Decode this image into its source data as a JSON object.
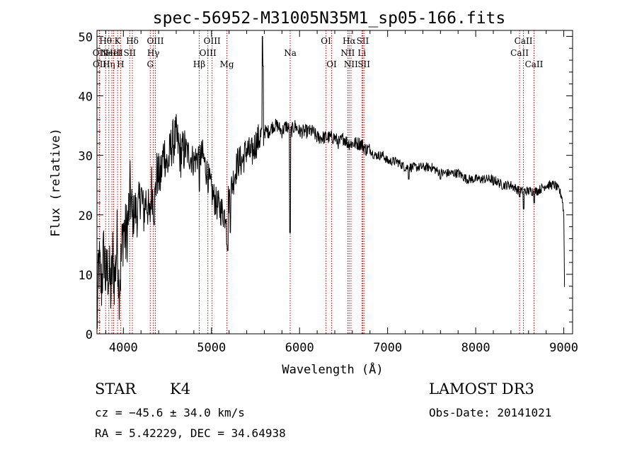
{
  "chart_data": {
    "type": "line",
    "title": "spec-56952-M31005N35M1_sp05-166.fits",
    "xlabel": "Wavelength (Å)",
    "ylabel": "Flux (relative)",
    "xlim": [
      3700,
      9100
    ],
    "ylim": [
      0,
      51
    ],
    "xticks": [
      4000,
      5000,
      6000,
      7000,
      8000,
      9000
    ],
    "yticks": [
      0,
      10,
      20,
      30,
      40,
      50
    ],
    "series": [
      {
        "name": "flux",
        "anchors": [
          [
            3700,
            1
          ],
          [
            3720,
            12
          ],
          [
            3750,
            8
          ],
          [
            3780,
            14
          ],
          [
            3800,
            9
          ],
          [
            3830,
            11
          ],
          [
            3860,
            7
          ],
          [
            3880,
            13
          ],
          [
            3900,
            9
          ],
          [
            3930,
            16
          ],
          [
            3950,
            8
          ],
          [
            3970,
            11
          ],
          [
            4000,
            18
          ],
          [
            4030,
            16
          ],
          [
            4060,
            20
          ],
          [
            4080,
            24
          ],
          [
            4100,
            19
          ],
          [
            4130,
            21
          ],
          [
            4160,
            20
          ],
          [
            4200,
            24
          ],
          [
            4230,
            20
          ],
          [
            4260,
            23
          ],
          [
            4300,
            19
          ],
          [
            4320,
            25
          ],
          [
            4350,
            21
          ],
          [
            4380,
            27
          ],
          [
            4420,
            26
          ],
          [
            4460,
            31
          ],
          [
            4500,
            28
          ],
          [
            4550,
            32
          ],
          [
            4600,
            33
          ],
          [
            4650,
            30
          ],
          [
            4700,
            31
          ],
          [
            4750,
            30
          ],
          [
            4800,
            29
          ],
          [
            4850,
            30
          ],
          [
            4900,
            30
          ],
          [
            4950,
            27
          ],
          [
            5000,
            24
          ],
          [
            5050,
            22
          ],
          [
            5100,
            21
          ],
          [
            5150,
            20
          ],
          [
            5200,
            23
          ],
          [
            5250,
            26
          ],
          [
            5300,
            29
          ],
          [
            5350,
            29
          ],
          [
            5400,
            31
          ],
          [
            5450,
            30
          ],
          [
            5500,
            32
          ],
          [
            5550,
            33
          ],
          [
            5600,
            34
          ],
          [
            5650,
            34
          ],
          [
            5700,
            35
          ],
          [
            5750,
            35
          ],
          [
            5800,
            34
          ],
          [
            5850,
            35
          ],
          [
            5900,
            34
          ],
          [
            5950,
            35
          ],
          [
            6000,
            34
          ],
          [
            6050,
            34
          ],
          [
            6100,
            34
          ],
          [
            6150,
            34
          ],
          [
            6200,
            33
          ],
          [
            6250,
            33
          ],
          [
            6300,
            33
          ],
          [
            6350,
            33
          ],
          [
            6400,
            33
          ],
          [
            6450,
            32
          ],
          [
            6500,
            33
          ],
          [
            6550,
            32
          ],
          [
            6600,
            32
          ],
          [
            6650,
            32
          ],
          [
            6700,
            32
          ],
          [
            6750,
            31
          ],
          [
            6800,
            31
          ],
          [
            6850,
            30
          ],
          [
            6900,
            30
          ],
          [
            6950,
            30
          ],
          [
            7000,
            29
          ],
          [
            7100,
            29
          ],
          [
            7200,
            28
          ],
          [
            7300,
            28
          ],
          [
            7400,
            28
          ],
          [
            7500,
            28
          ],
          [
            7600,
            27
          ],
          [
            7700,
            27
          ],
          [
            7800,
            27
          ],
          [
            7900,
            26
          ],
          [
            8000,
            26
          ],
          [
            8100,
            26
          ],
          [
            8200,
            26
          ],
          [
            8300,
            25
          ],
          [
            8400,
            25
          ],
          [
            8500,
            24
          ],
          [
            8600,
            24
          ],
          [
            8700,
            24
          ],
          [
            8800,
            25
          ],
          [
            8900,
            25
          ],
          [
            8950,
            24
          ],
          [
            8980,
            23
          ],
          [
            9000,
            20
          ],
          [
            9010,
            5
          ]
        ],
        "features": [
          {
            "x": 5577,
            "y": 50
          },
          {
            "x": 5585,
            "y": 45
          },
          {
            "x": 5892,
            "y": 17
          },
          {
            "x": 5184,
            "y": 14
          },
          {
            "x": 5174,
            "y": 15
          },
          {
            "x": 5215,
            "y": 17
          },
          {
            "x": 4862,
            "y": 24
          },
          {
            "x": 8500,
            "y": 23
          },
          {
            "x": 8544,
            "y": 21
          },
          {
            "x": 8664,
            "y": 22
          },
          {
            "x": 7600,
            "y": 26
          },
          {
            "x": 7240,
            "y": 26
          },
          {
            "x": 8200,
            "y": 25
          }
        ]
      }
    ],
    "line_markers": [
      {
        "x": 3727,
        "label": "OII",
        "row": 1
      },
      {
        "x": 3729,
        "label": "OII",
        "row": 2
      },
      {
        "x": 3798,
        "label": "Hθ",
        "row": 0
      },
      {
        "x": 3835,
        "label": "Hη",
        "row": 2
      },
      {
        "x": 3869,
        "label": "NeIII",
        "row": 1
      },
      {
        "x": 3889,
        "label": "HeI",
        "row": 1
      },
      {
        "x": 3934,
        "label": "K",
        "row": 0
      },
      {
        "x": 3968,
        "label": "H",
        "row": 2
      },
      {
        "x": 4072,
        "label": "SII",
        "row": 1
      },
      {
        "x": 4102,
        "label": "Hδ",
        "row": 0
      },
      {
        "x": 4305,
        "label": "G",
        "row": 2
      },
      {
        "x": 4340,
        "label": "Hγ",
        "row": 1
      },
      {
        "x": 4363,
        "label": "OIII",
        "row": 0
      },
      {
        "x": 4861,
        "label": "Hβ",
        "row": 2
      },
      {
        "x": 4959,
        "label": "OIII",
        "row": 1
      },
      {
        "x": 5007,
        "label": "OIII",
        "row": 0
      },
      {
        "x": 5175,
        "label": "Mg",
        "row": 2
      },
      {
        "x": 5894,
        "label": "Na",
        "row": 1
      },
      {
        "x": 6300,
        "label": "OI",
        "row": 0
      },
      {
        "x": 6364,
        "label": "OI",
        "row": 2
      },
      {
        "x": 6548,
        "label": "NII",
        "row": 1
      },
      {
        "x": 6563,
        "label": "Hα",
        "row": 0
      },
      {
        "x": 6584,
        "label": "NII",
        "row": 2
      },
      {
        "x": 6708,
        "label": "Li",
        "row": 1
      },
      {
        "x": 6717,
        "label": "SII",
        "row": 0
      },
      {
        "x": 6731,
        "label": "SII",
        "row": 2
      },
      {
        "x": 8498,
        "label": "CaII",
        "row": 1
      },
      {
        "x": 8542,
        "label": "CaII",
        "row": 0
      },
      {
        "x": 8662,
        "label": "CaII",
        "row": 2
      }
    ]
  },
  "info": {
    "object_class": "STAR",
    "subclass": "K4",
    "survey": "LAMOST DR3",
    "redshift": "cz = −45.6 ± 34.0 km/s",
    "obs_date": "Obs-Date: 20141021",
    "coords": "RA =   5.42229, DEC =  34.64938"
  }
}
